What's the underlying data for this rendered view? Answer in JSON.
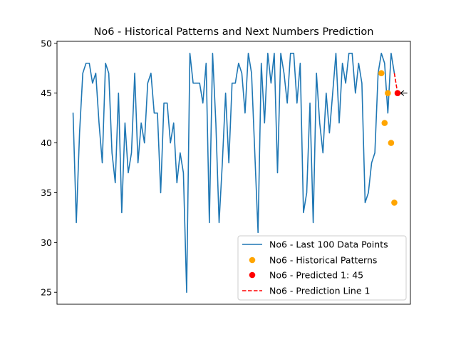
{
  "chart_data": {
    "type": "line",
    "title": "No6 - Historical Patterns and Next Numbers Prediction",
    "xlabel": "",
    "ylabel": "",
    "xlim": [
      -4.95,
      103.95
    ],
    "ylim": [
      23.8,
      50.2
    ],
    "yticks": [
      25,
      30,
      35,
      40,
      45,
      50
    ],
    "xticks_visible": false,
    "grid": false,
    "legend_position": "lower right",
    "series": [
      {
        "name": "No6 - Last 100 Data Points",
        "kind": "line",
        "color": "#1f77b4",
        "x_start": 0,
        "values": [
          43,
          32,
          41,
          47,
          48,
          48,
          46,
          47,
          42,
          38,
          48,
          47,
          39,
          36,
          45,
          33,
          42,
          37,
          39,
          47,
          38,
          42,
          40,
          46,
          47,
          43,
          43,
          35,
          44,
          44,
          40,
          42,
          36,
          39,
          37,
          25,
          49,
          46,
          46,
          46,
          44,
          48,
          32,
          49,
          42,
          32,
          38,
          45,
          38,
          46,
          46,
          48,
          47,
          43,
          49,
          47,
          39,
          31,
          48,
          42,
          49,
          46,
          49,
          37,
          49,
          47,
          44,
          49,
          49,
          44,
          48,
          33,
          35,
          44,
          32,
          47,
          42,
          39,
          45,
          41,
          45,
          49,
          42,
          48,
          46,
          49,
          49,
          45,
          48,
          46,
          34,
          35,
          38,
          39,
          47,
          49,
          48,
          43,
          49,
          47
        ]
      },
      {
        "name": "No6 - Historical Patterns",
        "kind": "scatter",
        "color": "#ffa500",
        "points": [
          [
            95,
            47
          ],
          [
            96,
            42
          ],
          [
            97,
            45
          ],
          [
            98,
            40
          ],
          [
            99,
            34
          ]
        ]
      },
      {
        "name": "No6 - Predicted 1: 45",
        "kind": "scatter",
        "color": "#ff0000",
        "points": [
          [
            100,
            45
          ]
        ]
      },
      {
        "name": "No6 - Prediction Line 1",
        "kind": "dashed-line",
        "color": "#ff0000",
        "points": [
          [
            99,
            47
          ],
          [
            100,
            45
          ]
        ]
      }
    ],
    "annotation": {
      "type": "arrow",
      "from": [
        103,
        45
      ],
      "to": [
        100,
        45
      ],
      "color": "#000000"
    }
  }
}
